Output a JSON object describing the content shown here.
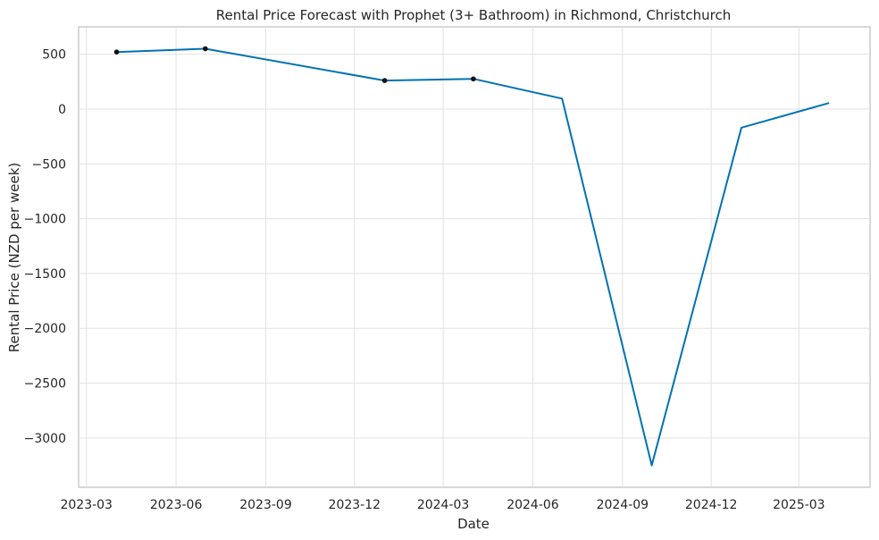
{
  "chart_data": {
    "type": "line",
    "title": "Rental Price Forecast with Prophet (3+ Bathroom) in Richmond, Christchurch",
    "xlabel": "Date",
    "ylabel": "Rental Price (NZD per week)",
    "grid": true,
    "x_ticks": [
      "2023-03",
      "2023-06",
      "2023-09",
      "2023-12",
      "2024-03",
      "2024-06",
      "2024-09",
      "2024-12",
      "2025-03"
    ],
    "y_ticks": [
      500,
      0,
      -500,
      -1000,
      -1500,
      -2000,
      -2500,
      -3000
    ],
    "xlim": [
      "2023-02-21",
      "2025-05-13"
    ],
    "ylim": [
      -3450,
      750
    ],
    "series": [
      {
        "color": "#0072b2",
        "points": [
          {
            "x": "2023-04-01",
            "y": 520
          },
          {
            "x": "2023-07-01",
            "y": 550
          },
          {
            "x": "2024-01-01",
            "y": 260
          },
          {
            "x": "2024-04-01",
            "y": 275
          },
          {
            "x": "2024-07-01",
            "y": 95
          },
          {
            "x": "2024-10-01",
            "y": -3250
          },
          {
            "x": "2025-01-01",
            "y": -170
          },
          {
            "x": "2025-04-01",
            "y": 55
          }
        ]
      }
    ],
    "observed": [
      {
        "x": "2023-04-01",
        "y": 520
      },
      {
        "x": "2023-07-01",
        "y": 550
      },
      {
        "x": "2024-01-01",
        "y": 260
      },
      {
        "x": "2024-04-01",
        "y": 275
      }
    ]
  }
}
